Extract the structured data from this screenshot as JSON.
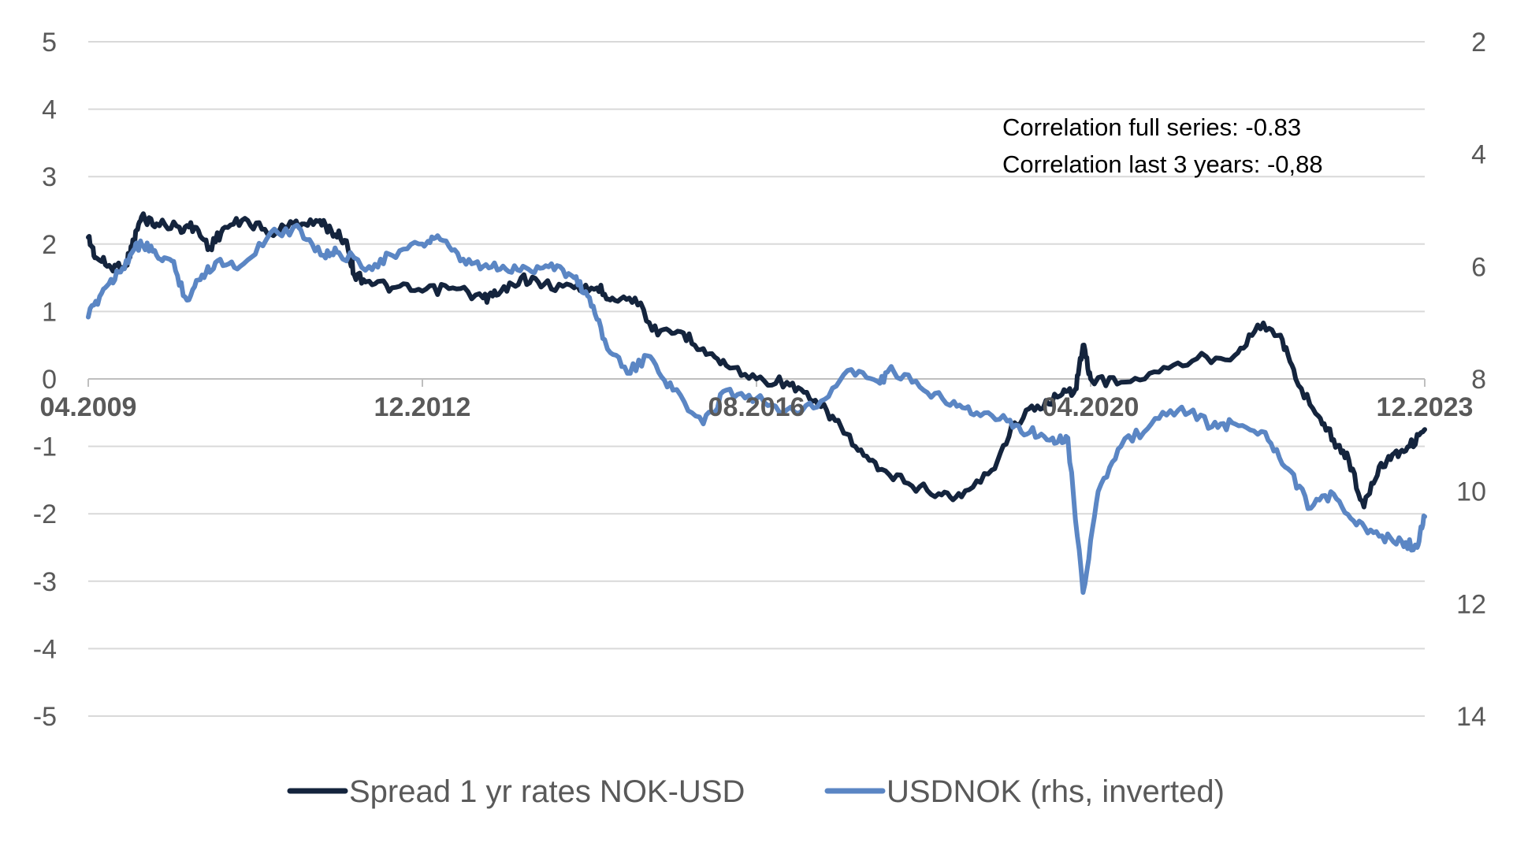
{
  "chart_data": {
    "type": "line",
    "title": "",
    "xlabel": "",
    "ylabel": "",
    "x_tick_labels": [
      "04.2009",
      "12.2012",
      "08.2016",
      "04.2020",
      "12.2023"
    ],
    "x_range": [
      "2009-04",
      "2023-12"
    ],
    "y_left": {
      "ticks": [
        "5",
        "4",
        "3",
        "2",
        "1",
        "0",
        "-1",
        "-2",
        "-3",
        "-4",
        "-5"
      ],
      "ylim": [
        -5,
        5
      ]
    },
    "y_right": {
      "ticks": [
        "2",
        "4",
        "6",
        "8",
        "10",
        "12",
        "14"
      ],
      "ylim": [
        2,
        14
      ],
      "inverted": true
    },
    "grid": "horizontal",
    "legend_position": "bottom",
    "annotations": [
      "Correlation full series: -0.83",
      "Correlation last 3 years: -0,88"
    ],
    "series": [
      {
        "name": "Spread 1 yr rates NOK-USD",
        "axis": "left",
        "color": "#14243d",
        "points": [
          [
            "2009-04",
            2.1
          ],
          [
            "2009-05",
            1.8
          ],
          [
            "2009-07",
            1.65
          ],
          [
            "2009-09",
            1.7
          ],
          [
            "2009-10",
            2.05
          ],
          [
            "2009-11",
            2.4
          ],
          [
            "2010-01",
            2.3
          ],
          [
            "2010-04",
            2.25
          ],
          [
            "2010-06",
            2.25
          ],
          [
            "2010-08",
            1.95
          ],
          [
            "2010-10",
            2.25
          ],
          [
            "2011-01",
            2.35
          ],
          [
            "2011-04",
            2.15
          ],
          [
            "2011-07",
            2.3
          ],
          [
            "2011-10",
            2.35
          ],
          [
            "2011-12",
            2.2
          ],
          [
            "2012-02",
            2.05
          ],
          [
            "2012-03",
            1.55
          ],
          [
            "2012-05",
            1.45
          ],
          [
            "2012-08",
            1.35
          ],
          [
            "2012-12",
            1.3
          ],
          [
            "2013-04",
            1.35
          ],
          [
            "2013-08",
            1.2
          ],
          [
            "2013-10",
            1.25
          ],
          [
            "2014-01",
            1.5
          ],
          [
            "2014-04",
            1.4
          ],
          [
            "2014-08",
            1.35
          ],
          [
            "2014-11",
            1.35
          ],
          [
            "2015-01",
            1.2
          ],
          [
            "2015-04",
            1.2
          ],
          [
            "2015-07",
            0.65
          ],
          [
            "2015-10",
            0.7
          ],
          [
            "2016-01",
            0.45
          ],
          [
            "2016-04",
            0.2
          ],
          [
            "2016-08",
            0.0
          ],
          [
            "2016-12",
            -0.05
          ],
          [
            "2017-03",
            -0.3
          ],
          [
            "2017-06",
            -0.55
          ],
          [
            "2017-09",
            -1.0
          ],
          [
            "2017-12",
            -1.35
          ],
          [
            "2018-04",
            -1.55
          ],
          [
            "2018-08",
            -1.7
          ],
          [
            "2018-11",
            -1.75
          ],
          [
            "2019-03",
            -1.35
          ],
          [
            "2019-06",
            -0.65
          ],
          [
            "2019-09",
            -0.4
          ],
          [
            "2019-12",
            -0.25
          ],
          [
            "2020-02",
            -0.15
          ],
          [
            "2020-03",
            0.5
          ],
          [
            "2020-04",
            0.0
          ],
          [
            "2020-08",
            -0.05
          ],
          [
            "2021-01",
            0.1
          ],
          [
            "2021-06",
            0.3
          ],
          [
            "2021-11",
            0.35
          ],
          [
            "2022-02",
            0.8
          ],
          [
            "2022-05",
            0.65
          ],
          [
            "2022-07",
            0.0
          ],
          [
            "2022-10",
            -0.55
          ],
          [
            "2022-12",
            -0.9
          ],
          [
            "2023-02",
            -1.2
          ],
          [
            "2023-04",
            -1.9
          ],
          [
            "2023-06",
            -1.3
          ],
          [
            "2023-08",
            -1.1
          ],
          [
            "2023-10",
            -1.0
          ],
          [
            "2023-12",
            -0.75
          ]
        ]
      },
      {
        "name": "USDNOK (rhs, inverted)",
        "axis": "right",
        "color": "#5b86c4",
        "points": [
          [
            "2009-04",
            6.9
          ],
          [
            "2009-06",
            6.4
          ],
          [
            "2009-08",
            6.1
          ],
          [
            "2009-10",
            5.7
          ],
          [
            "2009-11",
            5.6
          ],
          [
            "2010-01",
            5.8
          ],
          [
            "2010-03",
            5.9
          ],
          [
            "2010-05",
            6.6
          ],
          [
            "2010-07",
            6.15
          ],
          [
            "2010-09",
            5.9
          ],
          [
            "2010-12",
            6.0
          ],
          [
            "2011-04",
            5.4
          ],
          [
            "2011-08",
            5.35
          ],
          [
            "2011-11",
            5.8
          ],
          [
            "2012-01",
            5.75
          ],
          [
            "2012-05",
            6.0
          ],
          [
            "2012-08",
            5.8
          ],
          [
            "2012-12",
            5.6
          ],
          [
            "2013-02",
            5.45
          ],
          [
            "2013-05",
            5.9
          ],
          [
            "2013-08",
            6.0
          ],
          [
            "2013-11",
            6.05
          ],
          [
            "2014-02",
            6.05
          ],
          [
            "2014-05",
            5.95
          ],
          [
            "2014-08",
            6.2
          ],
          [
            "2014-10",
            6.55
          ],
          [
            "2014-12",
            7.3
          ],
          [
            "2015-03",
            7.9
          ],
          [
            "2015-06",
            7.6
          ],
          [
            "2015-09",
            8.2
          ],
          [
            "2016-01",
            8.8
          ],
          [
            "2016-04",
            8.2
          ],
          [
            "2016-08",
            8.35
          ],
          [
            "2016-12",
            8.55
          ],
          [
            "2017-04",
            8.5
          ],
          [
            "2017-08",
            7.85
          ],
          [
            "2017-12",
            8.05
          ],
          [
            "2018-02",
            7.85
          ],
          [
            "2018-06",
            8.2
          ],
          [
            "2018-10",
            8.4
          ],
          [
            "2019-01",
            8.6
          ],
          [
            "2019-05",
            8.75
          ],
          [
            "2019-08",
            8.95
          ],
          [
            "2019-11",
            9.05
          ],
          [
            "2020-01",
            9.05
          ],
          [
            "2020-03",
            11.8
          ],
          [
            "2020-05",
            10.0
          ],
          [
            "2020-08",
            9.2
          ],
          [
            "2020-12",
            8.8
          ],
          [
            "2021-04",
            8.5
          ],
          [
            "2021-08",
            8.85
          ],
          [
            "2021-11",
            8.8
          ],
          [
            "2022-03",
            8.95
          ],
          [
            "2022-06",
            9.6
          ],
          [
            "2022-09",
            10.3
          ],
          [
            "2022-12",
            10.05
          ],
          [
            "2023-03",
            10.6
          ],
          [
            "2023-06",
            10.8
          ],
          [
            "2023-09",
            10.9
          ],
          [
            "2023-11",
            11.0
          ],
          [
            "2023-12",
            10.45
          ]
        ]
      }
    ]
  }
}
